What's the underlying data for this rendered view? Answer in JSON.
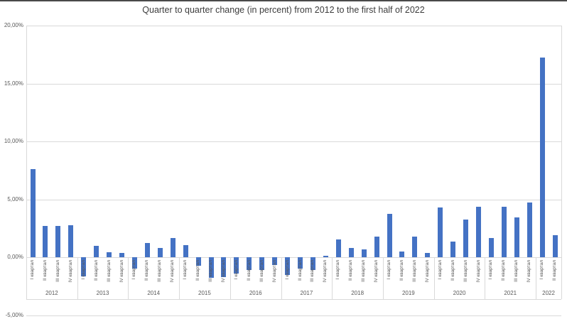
{
  "window": {
    "top_edge_color": "#4a4a4a"
  },
  "chart_data": {
    "type": "bar",
    "title": "Quarter to quarter change (in percent) from 2012 to the first half of 2022",
    "xlabel": "",
    "ylabel": "",
    "ylim": [
      -5,
      20
    ],
    "grid": true,
    "legend": false,
    "decimal_style": "comma",
    "y_ticks": [
      {
        "label": "20,00%",
        "value": 20
      },
      {
        "label": "15,00%",
        "value": 15
      },
      {
        "label": "10,00%",
        "value": 10
      },
      {
        "label": "5,00%",
        "value": 5
      },
      {
        "label": "0,00%",
        "value": 0
      },
      {
        "label": "-5,00%",
        "value": -5
      }
    ],
    "quarter_label_names": [
      "I квартал",
      "II квартал",
      "III квартал",
      "IV квартал"
    ],
    "groups": [
      {
        "year": "2012",
        "values": [
          7.6,
          2.75,
          2.7,
          2.8
        ]
      },
      {
        "year": "2013",
        "values": [
          -1.65,
          1.0,
          0.45,
          0.4
        ]
      },
      {
        "year": "2014",
        "values": [
          -0.95,
          1.25,
          0.85,
          1.7
        ]
      },
      {
        "year": "2015",
        "values": [
          1.05,
          -0.7,
          -1.75,
          -1.7
        ]
      },
      {
        "year": "2016",
        "values": [
          -1.4,
          -1.1,
          -1.1,
          -0.65
        ]
      },
      {
        "year": "2017",
        "values": [
          -1.5,
          -0.95,
          -1.1,
          0.15
        ]
      },
      {
        "year": "2018",
        "values": [
          1.55,
          0.8,
          0.7,
          1.8
        ]
      },
      {
        "year": "2019",
        "values": [
          3.75,
          0.5,
          1.8,
          0.4
        ]
      },
      {
        "year": "2020",
        "values": [
          4.3,
          1.35,
          3.25,
          4.35
        ]
      },
      {
        "year": "2021",
        "values": [
          1.7,
          4.35,
          3.45,
          4.75
        ]
      },
      {
        "year": "2022",
        "values": [
          17.25,
          1.95
        ]
      }
    ],
    "colors": {
      "bar": "#4472C4",
      "gridline": "#D9D9D9",
      "axis_text": "#595959",
      "title_text": "#3d3d3d",
      "separator": "#D9D9D9"
    }
  }
}
